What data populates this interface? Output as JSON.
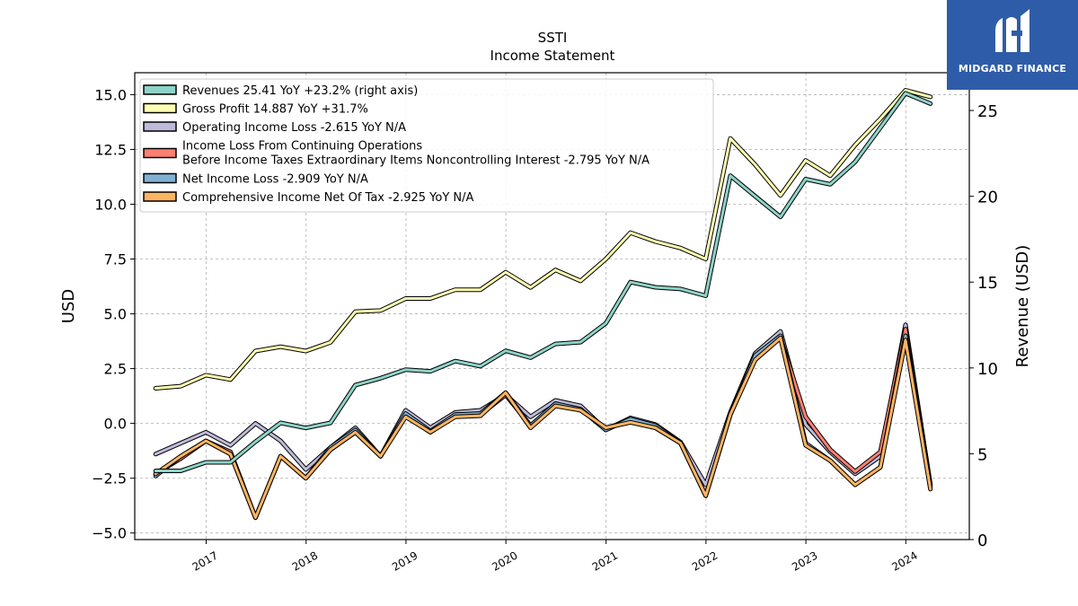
{
  "title": "SSTI",
  "subtitle": "Income Statement",
  "logo": {
    "text": "MIDGARD FINANCE",
    "color": "#2f5ca8"
  },
  "chart_data": {
    "type": "line",
    "ylabel": "USD",
    "ylabel_right": "Revenue (USD)",
    "ylim": [
      -5.3,
      16.0
    ],
    "ylim_right": [
      0,
      27.2
    ],
    "yticks": [
      -5.0,
      -2.5,
      0.0,
      2.5,
      5.0,
      7.5,
      10.0,
      12.5,
      15.0
    ],
    "ytick_labels": [
      "−5.0",
      "−2.5",
      "0.0",
      "2.5",
      "5.0",
      "7.5",
      "10.0",
      "12.5",
      "15.0"
    ],
    "yticks_right": [
      0,
      5,
      10,
      15,
      20,
      25
    ],
    "ytick_labels_right": [
      "0",
      "5",
      "10",
      "15",
      "20",
      "25"
    ],
    "xlim": [
      "2016-04-15",
      "2024-08-20"
    ],
    "xticks": [
      "2017-01-01",
      "2018-01-01",
      "2019-01-01",
      "2020-01-01",
      "2021-01-01",
      "2022-01-01",
      "2023-01-01",
      "2024-01-01"
    ],
    "xtick_labels": [
      "2017",
      "2018",
      "2019",
      "2020",
      "2021",
      "2022",
      "2023",
      "2024"
    ],
    "grid": true,
    "legend_position": "top-left",
    "x": [
      "2016-06-30",
      "2016-09-30",
      "2016-12-31",
      "2017-03-31",
      "2017-06-30",
      "2017-09-30",
      "2017-12-31",
      "2018-03-31",
      "2018-06-30",
      "2018-09-30",
      "2018-12-31",
      "2019-03-31",
      "2019-06-30",
      "2019-09-30",
      "2019-12-31",
      "2020-03-31",
      "2020-06-30",
      "2020-09-30",
      "2020-12-31",
      "2021-03-31",
      "2021-06-30",
      "2021-09-30",
      "2021-12-31",
      "2022-03-31",
      "2022-06-30",
      "2022-09-30",
      "2022-12-31",
      "2023-03-31",
      "2023-06-30",
      "2023-09-30",
      "2023-12-31",
      "2024-03-31"
    ],
    "series": [
      {
        "name": "Gross Profit",
        "legend_label": "Gross Profit  14.887 YoY +31.7%",
        "axis": "left",
        "color": "#ffffb3",
        "values": [
          1.6,
          1.7,
          2.2,
          2.0,
          3.3,
          3.5,
          3.3,
          3.7,
          5.1,
          5.15,
          5.7,
          5.7,
          6.1,
          6.1,
          6.9,
          6.2,
          7.0,
          6.5,
          7.5,
          8.7,
          8.3,
          8.0,
          7.5,
          13.0,
          11.8,
          10.4,
          12.0,
          11.3,
          12.7,
          13.9,
          15.2,
          14.9
        ]
      },
      {
        "name": "Operating Income Loss",
        "legend_label": "Operating Income Loss  -2.615 YoY N/A",
        "axis": "left",
        "color": "#bebada",
        "values": [
          -1.4,
          -0.9,
          -0.4,
          -1.0,
          0.0,
          -0.8,
          -2.1,
          -1.1,
          -0.2,
          -1.5,
          0.6,
          -0.2,
          0.5,
          0.6,
          1.3,
          0.3,
          1.05,
          0.8,
          -0.3,
          0.25,
          -0.05,
          -0.85,
          -2.8,
          0.5,
          3.2,
          4.2,
          -0.05,
          -1.3,
          -2.3,
          -1.5,
          4.5,
          -2.8
        ]
      },
      {
        "name": "Income Loss From Continuing Operations Before Income Taxes Extraordinary Items Noncontrolling Interest",
        "legend_label_lines": [
          "Income Loss From Continuing Operations",
          "Before Income Taxes Extraordinary Items Noncontrolling Interest  -2.795 YoY N/A"
        ],
        "axis": "left",
        "color": "#fb8072",
        "values": [
          -2.3,
          -1.6,
          -0.8,
          -1.3,
          -4.3,
          -1.5,
          -2.5,
          -1.2,
          -0.4,
          -1.5,
          0.35,
          -0.4,
          0.4,
          0.4,
          1.3,
          -0.1,
          0.9,
          0.6,
          -0.2,
          0.1,
          -0.2,
          -0.9,
          -3.3,
          0.4,
          3.0,
          3.9,
          0.3,
          -1.2,
          -2.2,
          -1.3,
          4.3,
          -2.8
        ]
      },
      {
        "name": "Net Income Loss",
        "legend_label": "Net Income Loss  -2.909 YoY N/A",
        "axis": "left",
        "color": "#80b1d3",
        "values": [
          -2.4,
          -1.5,
          -0.8,
          -1.4,
          -4.3,
          -1.5,
          -2.5,
          -1.1,
          -0.3,
          -1.5,
          0.45,
          -0.35,
          0.4,
          0.45,
          1.4,
          -0.1,
          0.9,
          0.65,
          -0.3,
          0.2,
          -0.1,
          -0.9,
          -3.3,
          0.4,
          3.1,
          4.0,
          -0.9,
          -1.7,
          -2.8,
          -2.0,
          4.0,
          -2.9
        ]
      },
      {
        "name": "Comprehensive Income Net Of Tax",
        "legend_label": "Comprehensive Income Net Of Tax  -2.925 YoY N/A",
        "axis": "left",
        "color": "#fdb462",
        "values": [
          -2.3,
          -1.5,
          -0.8,
          -1.4,
          -4.3,
          -1.5,
          -2.5,
          -1.2,
          -0.4,
          -1.5,
          0.3,
          -0.4,
          0.3,
          0.35,
          1.4,
          -0.2,
          0.8,
          0.6,
          -0.2,
          0.05,
          -0.2,
          -0.9,
          -3.3,
          0.4,
          2.9,
          3.9,
          -1.0,
          -1.7,
          -2.8,
          -2.0,
          3.8,
          -3.0
        ]
      },
      {
        "name": "Revenues",
        "legend_label": "Revenues  25.41 YoY +23.2% (right axis)",
        "axis": "right",
        "color": "#8dd3c7",
        "values": [
          4.0,
          4.0,
          4.5,
          4.5,
          5.7,
          6.8,
          6.5,
          6.8,
          9.0,
          9.4,
          9.9,
          9.8,
          10.4,
          10.1,
          11.0,
          10.6,
          11.4,
          11.5,
          12.6,
          15.0,
          14.7,
          14.6,
          14.2,
          21.2,
          20.0,
          18.8,
          21.0,
          20.7,
          22.0,
          24.0,
          26.0,
          25.4
        ]
      }
    ],
    "legend_order": [
      "Revenues",
      "Gross Profit",
      "Operating Income Loss",
      "Income Loss From Continuing Operations Before Income Taxes Extraordinary Items Noncontrolling Interest",
      "Net Income Loss",
      "Comprehensive Income Net Of Tax"
    ]
  }
}
